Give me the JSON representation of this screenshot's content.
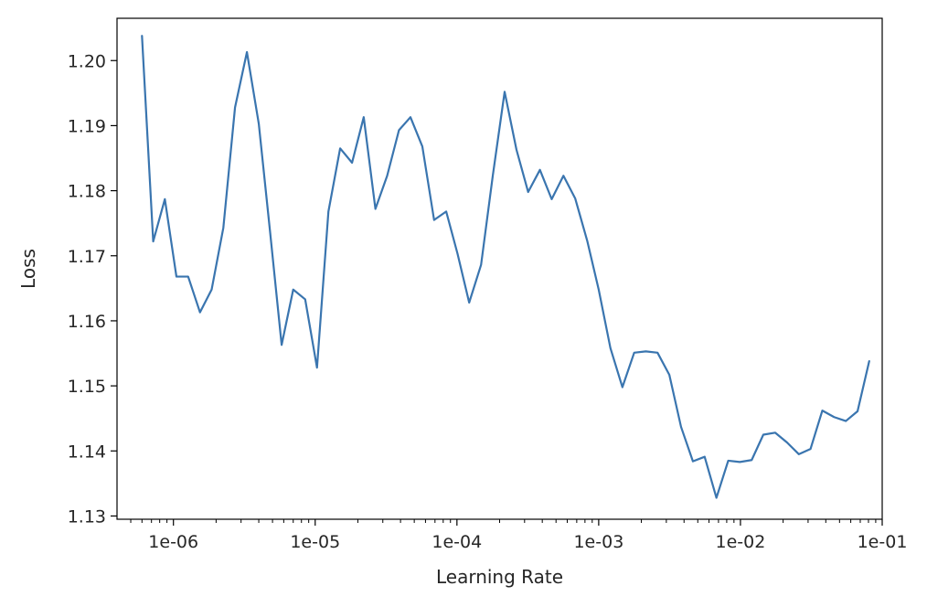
{
  "chart_data": {
    "type": "line",
    "title": "",
    "xlabel": "Learning Rate",
    "ylabel": "Loss",
    "x_scale": "log",
    "xlim": [
      4e-07,
      0.1
    ],
    "ylim": [
      1.1295,
      1.2065
    ],
    "x_ticks": [
      {
        "value": 1e-06,
        "label": "1e-06"
      },
      {
        "value": 1e-05,
        "label": "1e-05"
      },
      {
        "value": 0.0001,
        "label": "1e-04"
      },
      {
        "value": 0.001,
        "label": "1e-03"
      },
      {
        "value": 0.01,
        "label": "1e-02"
      },
      {
        "value": 0.1,
        "label": "1e-01"
      }
    ],
    "y_ticks": [
      {
        "value": 1.13,
        "label": "1.13"
      },
      {
        "value": 1.14,
        "label": "1.14"
      },
      {
        "value": 1.15,
        "label": "1.15"
      },
      {
        "value": 1.16,
        "label": "1.16"
      },
      {
        "value": 1.17,
        "label": "1.17"
      },
      {
        "value": 1.18,
        "label": "1.18"
      },
      {
        "value": 1.19,
        "label": "1.19"
      },
      {
        "value": 1.2,
        "label": "1.20"
      }
    ],
    "grid": false,
    "legend": "none",
    "series": [
      {
        "color": "#3a75af",
        "points": [
          [
            6e-07,
            1.2038
          ],
          [
            7.2e-07,
            1.1722
          ],
          [
            8.7e-07,
            1.1787
          ],
          [
            1.05e-06,
            1.1668
          ],
          [
            1.27e-06,
            1.1668
          ],
          [
            1.54e-06,
            1.1613
          ],
          [
            1.86e-06,
            1.1648
          ],
          [
            2.25e-06,
            1.1743
          ],
          [
            2.72e-06,
            1.1928
          ],
          [
            3.3e-06,
            1.2013
          ],
          [
            4e-06,
            1.1903
          ],
          [
            4.8e-06,
            1.1738
          ],
          [
            5.8e-06,
            1.1563
          ],
          [
            7e-06,
            1.1648
          ],
          [
            8.5e-06,
            1.1633
          ],
          [
            1.03e-05,
            1.1528
          ],
          [
            1.24e-05,
            1.1768
          ],
          [
            1.5e-05,
            1.1865
          ],
          [
            1.82e-05,
            1.1843
          ],
          [
            2.2e-05,
            1.1913
          ],
          [
            2.66e-05,
            1.1772
          ],
          [
            3.22e-05,
            1.1823
          ],
          [
            3.9e-05,
            1.1893
          ],
          [
            4.7e-05,
            1.1913
          ],
          [
            5.7e-05,
            1.1868
          ],
          [
            6.9e-05,
            1.1755
          ],
          [
            8.4e-05,
            1.1768
          ],
          [
            0.000101,
            1.1703
          ],
          [
            0.000122,
            1.1628
          ],
          [
            0.000148,
            1.1686
          ],
          [
            0.000179,
            1.1823
          ],
          [
            0.000217,
            1.1952
          ],
          [
            0.000263,
            1.1863
          ],
          [
            0.000318,
            1.1798
          ],
          [
            0.000385,
            1.1832
          ],
          [
            0.000466,
            1.1787
          ],
          [
            0.000564,
            1.1823
          ],
          [
            0.000683,
            1.1788
          ],
          [
            0.00083,
            1.1723
          ],
          [
            0.001,
            1.1648
          ],
          [
            0.00121,
            1.1558
          ],
          [
            0.00147,
            1.1498
          ],
          [
            0.00178,
            1.1551
          ],
          [
            0.00215,
            1.1553
          ],
          [
            0.0026,
            1.1551
          ],
          [
            0.00315,
            1.1517
          ],
          [
            0.00381,
            1.1437
          ],
          [
            0.00462,
            1.1384
          ],
          [
            0.00559,
            1.1391
          ],
          [
            0.00677,
            1.1328
          ],
          [
            0.0082,
            1.1385
          ],
          [
            0.0099,
            1.1383
          ],
          [
            0.012,
            1.1386
          ],
          [
            0.0145,
            1.1425
          ],
          [
            0.0176,
            1.1428
          ],
          [
            0.0213,
            1.1413
          ],
          [
            0.0258,
            1.1395
          ],
          [
            0.0312,
            1.1403
          ],
          [
            0.0378,
            1.1462
          ],
          [
            0.0458,
            1.1452
          ],
          [
            0.0554,
            1.1446
          ],
          [
            0.067,
            1.1461
          ],
          [
            0.081,
            1.1538
          ]
        ]
      }
    ]
  },
  "style": {
    "axis_color": "#000000",
    "text_color": "#262626",
    "background": "#ffffff"
  }
}
